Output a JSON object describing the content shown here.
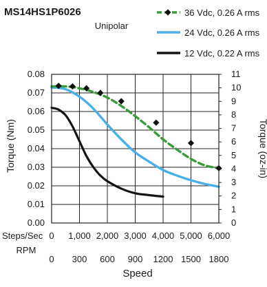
{
  "chart_data": {
    "type": "line",
    "title": "MS14HS1P6026",
    "subtitle": "Unipolar",
    "xlabel": "Speed",
    "ylabel": "Torque (Nm)",
    "ylabel_right": "Torque (oz-in)",
    "x_axes": [
      {
        "label": "Steps/Sec",
        "ticks": [
          "0",
          "1,000",
          "2,000",
          "3,000",
          "4,000",
          "5,000",
          "6,000"
        ],
        "range": [
          0,
          6000
        ]
      },
      {
        "label": "RPM",
        "ticks": [
          "0",
          "300",
          "600",
          "900",
          "1200",
          "1500",
          "1800"
        ],
        "range": [
          0,
          1800
        ]
      }
    ],
    "ylim": [
      0,
      0.08
    ],
    "y_ticks": [
      "0.00",
      "0.01",
      "0.02",
      "0.03",
      "0.04",
      "0.05",
      "0.06",
      "0.07",
      "0.08"
    ],
    "ylim_right": [
      0,
      11
    ],
    "y_ticks_right": [
      "0",
      "1",
      "2",
      "3",
      "4",
      "5",
      "6",
      "7",
      "8",
      "9",
      "10",
      "11"
    ],
    "grid": true,
    "legend_position": "top-right",
    "series": [
      {
        "name": "36 Vdc, 0.26 A rms",
        "color": "#3a9a3a",
        "style": "dashed-with-diamond-markers",
        "x": [
          0,
          500,
          1000,
          1500,
          2000,
          2500,
          3000,
          3500,
          4000,
          4500,
          5000,
          5500,
          6000
        ],
        "y": [
          0.0735,
          0.0735,
          0.0725,
          0.0705,
          0.0675,
          0.063,
          0.0575,
          0.0515,
          0.045,
          0.0395,
          0.0345,
          0.031,
          0.0295
        ],
        "markers_x": [
          250,
          750,
          1250,
          1750,
          2500,
          3750,
          5000,
          6000
        ],
        "markers_y": [
          0.0738,
          0.0735,
          0.0725,
          0.07,
          0.0655,
          0.054,
          0.043,
          0.0295
        ]
      },
      {
        "name": "24 Vdc, 0.26 A rms",
        "color": "#4aaee8",
        "style": "solid",
        "x": [
          0,
          500,
          1000,
          1500,
          2000,
          2500,
          3000,
          3500,
          4000,
          4500,
          5000,
          5500,
          6000
        ],
        "y": [
          0.073,
          0.072,
          0.068,
          0.0615,
          0.053,
          0.045,
          0.038,
          0.033,
          0.0285,
          0.0255,
          0.023,
          0.021,
          0.0195
        ]
      },
      {
        "name": "12 Vdc, 0.22 A rms",
        "color": "#141414",
        "style": "solid",
        "x": [
          0,
          250,
          500,
          750,
          1000,
          1250,
          1500,
          1750,
          2000,
          2500,
          3000,
          3500,
          4000
        ],
        "y": [
          0.062,
          0.061,
          0.058,
          0.052,
          0.044,
          0.036,
          0.03,
          0.0255,
          0.0225,
          0.0185,
          0.016,
          0.015,
          0.0142
        ]
      }
    ]
  }
}
